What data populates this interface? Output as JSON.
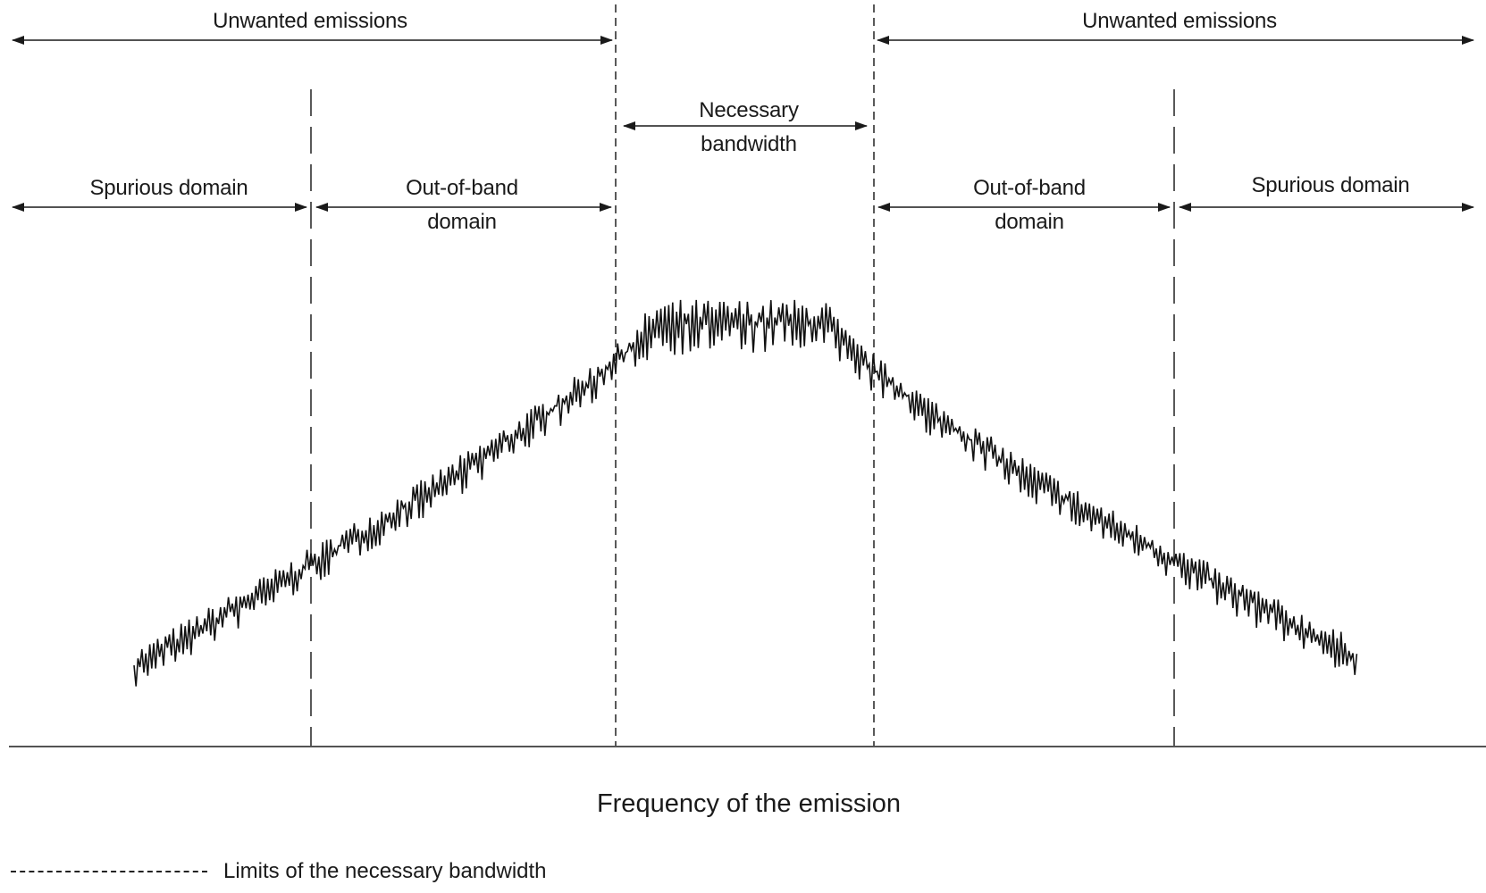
{
  "labels": {
    "unwanted_left": "Unwanted emissions",
    "unwanted_right": "Unwanted emissions",
    "necessary_line1": "Necessary",
    "necessary_line2": "bandwidth",
    "spurious_left": "Spurious domain",
    "oob_left_line1": "Out-of-band",
    "oob_left_line2": "domain",
    "oob_right_line1": "Out-of-band",
    "oob_right_line2": "domain",
    "spurious_right": "Spurious domain"
  },
  "axis": {
    "x_label": "Frequency of the emission"
  },
  "legend": {
    "dashed_label": "Limits of the necessary bandwidth"
  },
  "colors": {
    "ink": "#1a1a1a",
    "background": "#ffffff"
  }
}
